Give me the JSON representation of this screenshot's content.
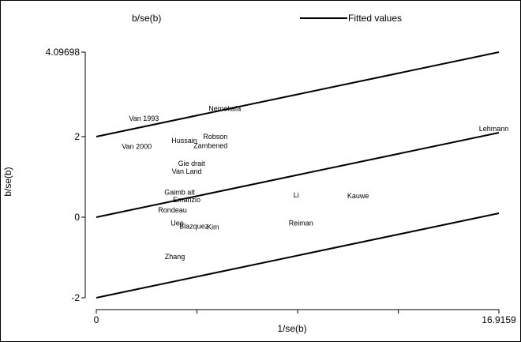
{
  "chart_data": {
    "type": "scatter",
    "title": "",
    "xlabel": "1/se(b)",
    "ylabel": "b/se(b)",
    "xlim": [
      0,
      16.9159
    ],
    "ylim": [
      -2,
      4.09698
    ],
    "x_tick_labels": [
      {
        "value": 0,
        "label": "0"
      },
      {
        "value": 16.9159,
        "label": "16.9159"
      }
    ],
    "x_minor_ticks": [
      4.23,
      8.46,
      12.69
    ],
    "y_tick_labels": [
      {
        "value": -2,
        "label": "-2"
      },
      {
        "value": 0,
        "label": "0"
      },
      {
        "value": 2,
        "label": "2"
      },
      {
        "value": 4.09698,
        "label": "4.09698"
      }
    ],
    "legend": {
      "position": "top",
      "entries": [
        {
          "label": "b/se(b)",
          "kind": "marker-label"
        },
        {
          "label": "Fitted values",
          "kind": "line"
        }
      ]
    },
    "points": [
      {
        "label": "Van 1993",
        "x": 2.0,
        "y": 2.45
      },
      {
        "label": "Nemekafa",
        "x": 5.4,
        "y": 2.7
      },
      {
        "label": "Van 2000",
        "x": 1.7,
        "y": 1.75
      },
      {
        "label": "Hussain",
        "x": 3.7,
        "y": 1.9
      },
      {
        "label": "Robson",
        "x": 5.0,
        "y": 2.0
      },
      {
        "label": "Zambened",
        "x": 4.8,
        "y": 1.77
      },
      {
        "label": "Gie drait",
        "x": 4.0,
        "y": 1.33
      },
      {
        "label": "Van Land",
        "x": 3.8,
        "y": 1.14
      },
      {
        "label": "Gaimb alt",
        "x": 3.5,
        "y": 0.62
      },
      {
        "label": "Emanzio",
        "x": 3.8,
        "y": 0.43
      },
      {
        "label": "Rondeau",
        "x": 3.2,
        "y": 0.18
      },
      {
        "label": "Li",
        "x": 8.4,
        "y": 0.55
      },
      {
        "label": "Kauwe",
        "x": 11.0,
        "y": 0.53
      },
      {
        "label": "Lehmann",
        "x": 16.7,
        "y": 2.2
      },
      {
        "label": "Ueo",
        "x": 3.4,
        "y": -0.15
      },
      {
        "label": "Blazquez",
        "x": 4.1,
        "y": -0.23
      },
      {
        "label": "Kim",
        "x": 4.9,
        "y": -0.25
      },
      {
        "label": "Reiman",
        "x": 8.6,
        "y": -0.15
      },
      {
        "label": "Zhang",
        "x": 3.3,
        "y": -0.98
      }
    ],
    "series": [
      {
        "name": "Fitted values",
        "x": [
          0,
          16.9159
        ],
        "y": [
          2,
          4.09698
        ]
      },
      {
        "name": "",
        "x": [
          0,
          16.9159
        ],
        "y": [
          0,
          2.09698
        ]
      },
      {
        "name": "",
        "x": [
          0,
          16.9159
        ],
        "y": [
          -2,
          0.09698
        ]
      }
    ]
  }
}
